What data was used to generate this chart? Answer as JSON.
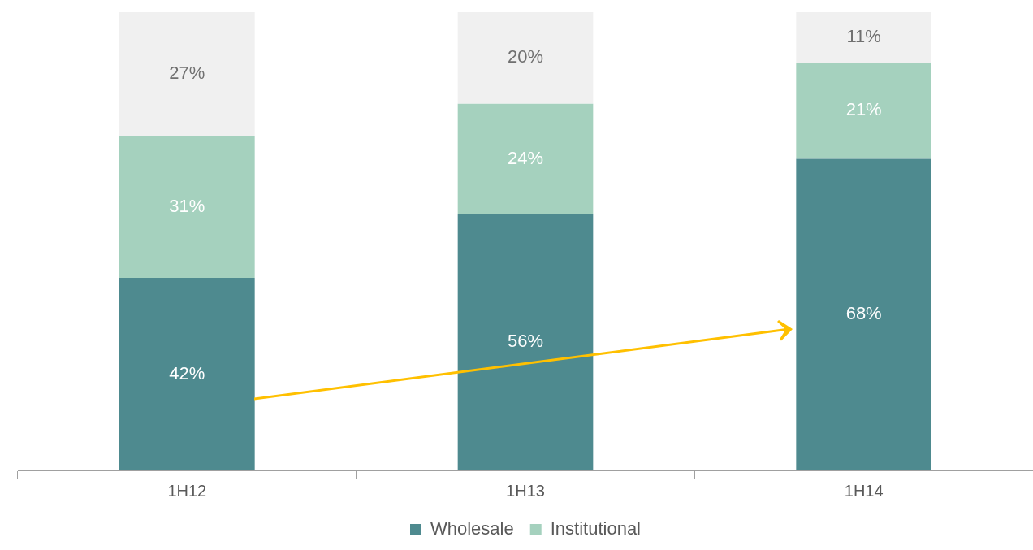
{
  "chart_data": {
    "type": "bar",
    "stacked": true,
    "categories": [
      "1H12",
      "1H13",
      "1H14"
    ],
    "series": [
      {
        "name": "Wholesale",
        "color": "#4e8a8f",
        "values": [
          42,
          56,
          68
        ],
        "value_labels": [
          "42%",
          "56%",
          "68%"
        ]
      },
      {
        "name": "Institutional",
        "color": "#a5d1be",
        "values": [
          31,
          24,
          21
        ],
        "value_labels": [
          "31%",
          "24%",
          "21%"
        ]
      },
      {
        "color": "#f0f0f0",
        "values": [
          27,
          20,
          11
        ],
        "value_labels": [
          "27%",
          "20%",
          "11%"
        ]
      }
    ],
    "legend": "bottom"
  }
}
